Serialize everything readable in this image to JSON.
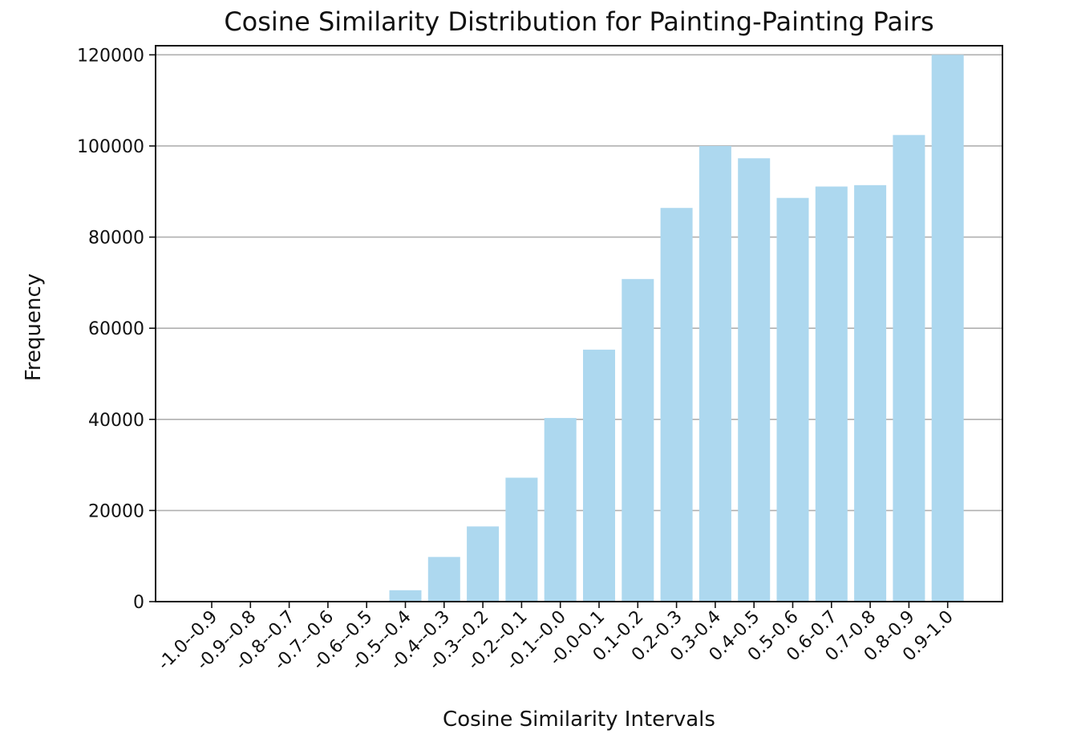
{
  "chart_data": {
    "type": "bar",
    "title": "Cosine Similarity Distribution for Painting-Painting Pairs",
    "xlabel": "Cosine Similarity Intervals",
    "ylabel": "Frequency",
    "categories": [
      "-1.0--0.9",
      "-0.9--0.8",
      "-0.8--0.7",
      "-0.7--0.6",
      "-0.6--0.5",
      "-0.5--0.4",
      "-0.4--0.3",
      "-0.3--0.2",
      "-0.2--0.1",
      "-0.1--0.0",
      "-0.0-0.1",
      "0.1-0.2",
      "0.2-0.3",
      "0.3-0.4",
      "0.4-0.5",
      "0.5-0.6",
      "0.6-0.7",
      "0.7-0.8",
      "0.8-0.9",
      "0.9-1.0"
    ],
    "values": [
      0,
      0,
      0,
      0,
      0,
      2500,
      9800,
      16500,
      27200,
      40300,
      55300,
      70800,
      86400,
      100000,
      97300,
      88600,
      91100,
      91400,
      102400,
      120000
    ],
    "ylim": [
      0,
      122000
    ],
    "yticks": [
      0,
      20000,
      40000,
      60000,
      80000,
      100000,
      120000
    ],
    "grid": "y",
    "bar_color": "#add8ef",
    "tick_label_rotation": 45
  }
}
